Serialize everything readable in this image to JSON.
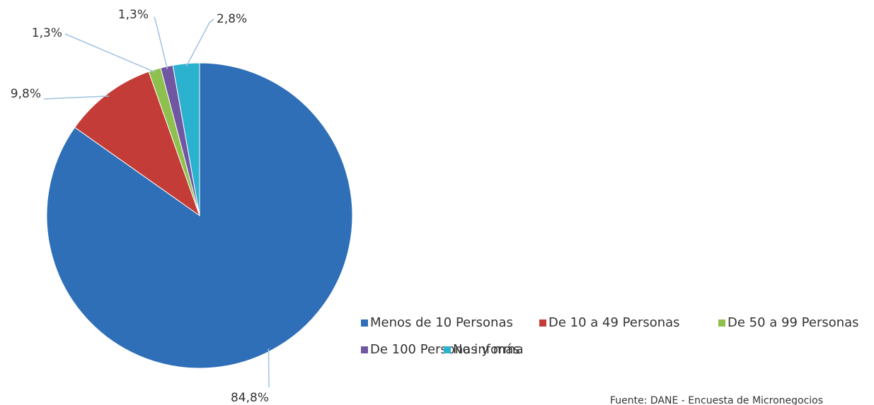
{
  "chart_data": {
    "type": "pie",
    "categories": [
      "Menos de 10 Personas",
      "De 10 a 49 Personas",
      "De 50 a 99 Personas",
      "De 100 Personas y más",
      "No informa"
    ],
    "values": [
      84.8,
      9.8,
      1.3,
      1.3,
      2.8
    ],
    "value_labels": [
      "84,8%",
      "9,8%",
      "1,3%",
      "1,3%",
      "2,8%"
    ],
    "colors": [
      "#2e6fb8",
      "#c43c37",
      "#8dc04c",
      "#7157a2",
      "#2bb2cf"
    ],
    "source": "Fuente: DANE - Encuesta de Micronegocios"
  }
}
